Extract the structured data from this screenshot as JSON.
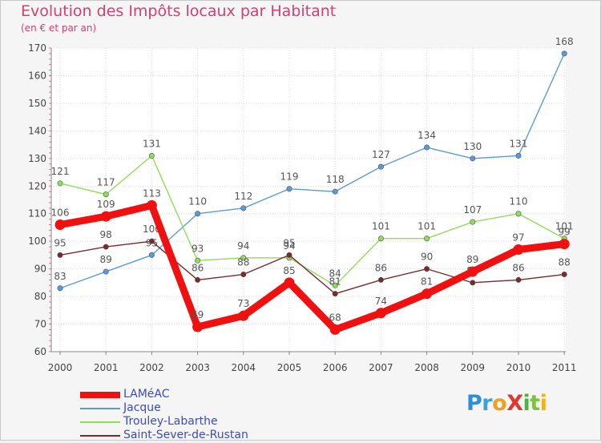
{
  "chart_data": {
    "type": "line",
    "title": "Evolution des Impôts locaux par Habitant",
    "subtitle": "(en € et par an)",
    "categories": [
      "2000",
      "2001",
      "2002",
      "2003",
      "2004",
      "2005",
      "2006",
      "2007",
      "2008",
      "2009",
      "2010",
      "2011"
    ],
    "ylim": [
      60,
      170
    ],
    "yticks": [
      60,
      70,
      80,
      90,
      100,
      110,
      120,
      130,
      140,
      150,
      160,
      170
    ],
    "grid": true,
    "legend_position": "bottom-left",
    "series": [
      {
        "name": "Jacque",
        "color": "#5b9bd5",
        "values": [
          83,
          89,
          95,
          110,
          112,
          119,
          118,
          127,
          134,
          130,
          131,
          168
        ]
      },
      {
        "name": "Trouley-Labarthe",
        "color": "#90dd5a",
        "values": [
          121,
          117,
          131,
          93,
          94,
          94,
          84,
          101,
          101,
          107,
          110,
          101
        ]
      },
      {
        "name": "Saint-Sever-de-Rustan",
        "color": "#7a2a2a",
        "values": [
          95,
          98,
          100,
          86,
          88,
          95,
          81,
          86,
          90,
          85,
          86,
          88
        ]
      },
      {
        "name": "LAMéAC",
        "color": "#f01010",
        "values": [
          106,
          109,
          113,
          69,
          73,
          85,
          68,
          74,
          81,
          89,
          97,
          99
        ]
      }
    ],
    "legend_order": [
      "LAMéAC",
      "Jacque",
      "Trouley-Labarthe",
      "Saint-Sever-de-Rustan"
    ]
  },
  "logo": {
    "text": "ProXiti",
    "letters": [
      "P",
      "r",
      "o",
      "X",
      "i",
      "t",
      "i"
    ]
  }
}
